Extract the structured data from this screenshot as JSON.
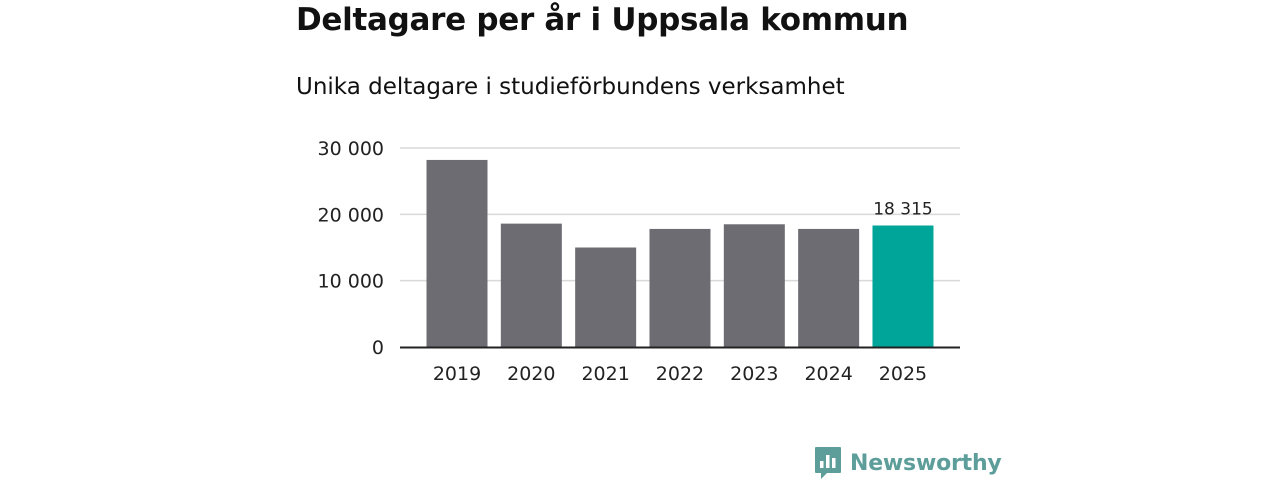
{
  "title": "Deltagare per år i Uppsala kommun",
  "subtitle": "Unika deltagare i studieförbundens verksamhet",
  "colors": {
    "bar": "#6d6c72",
    "highlight": "#00a599",
    "grid": "#d9d9d9",
    "axis": "#222222",
    "text": "#222222",
    "brand": "#5d9e9a"
  },
  "chart_data": {
    "type": "bar",
    "title": "Deltagare per år i Uppsala kommun",
    "subtitle": "Unika deltagare i studieförbundens verksamhet",
    "categories": [
      "2019",
      "2020",
      "2021",
      "2022",
      "2023",
      "2024",
      "2025"
    ],
    "values": [
      28200,
      18600,
      15000,
      17800,
      18500,
      17800,
      18315
    ],
    "highlight_index": 6,
    "data_labels": [
      {
        "index": 6,
        "text": "18 315"
      }
    ],
    "yticks": [
      0,
      10000,
      20000,
      30000
    ],
    "ytick_labels": [
      "0",
      "10 000",
      "20 000",
      "30 000"
    ],
    "ylim": [
      0,
      30000
    ],
    "xlabel": "",
    "ylabel": "",
    "grid": true,
    "legend": "none"
  },
  "brand": {
    "name": "Newsworthy",
    "icon": "newsworthy-logo-icon"
  }
}
